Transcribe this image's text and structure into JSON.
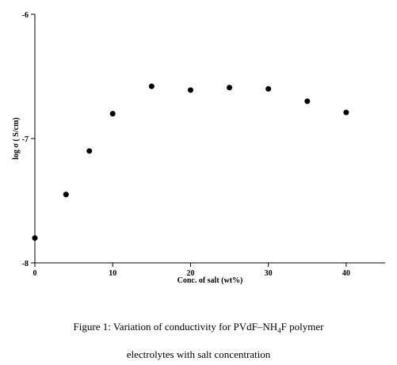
{
  "chart_data": {
    "type": "scatter",
    "xlabel": "Conc. of salt (wt%)",
    "ylabel": "log σ ( S/cm)",
    "xlim": [
      0,
      45
    ],
    "ylim": [
      -8,
      -6
    ],
    "xticks": [
      0,
      10,
      20,
      30,
      40
    ],
    "yticks": [
      -6,
      -7,
      -8
    ],
    "grid": false,
    "series": [
      {
        "x": [
          0,
          4,
          7,
          10,
          15,
          20,
          25,
          30,
          35,
          40
        ],
        "y": [
          -7.8,
          -7.45,
          -7.1,
          -6.8,
          -6.58,
          -6.61,
          -6.59,
          -6.6,
          -6.7,
          -6.79
        ]
      }
    ]
  },
  "caption": {
    "line1_a": "Figure 1: Variation of conductivity for PVdF–NH",
    "line1_sub": "4",
    "line1_b": "F polymer",
    "line2": "electrolytes with salt  concentration"
  }
}
